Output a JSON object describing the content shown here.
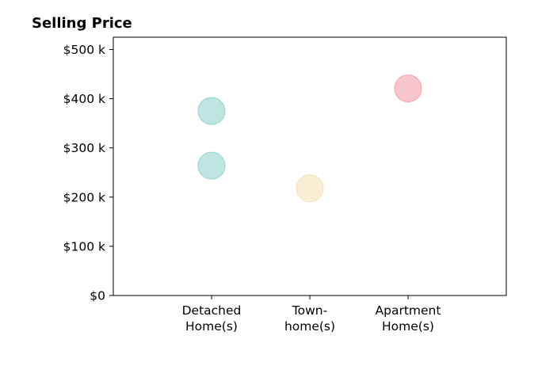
{
  "chart_data": {
    "type": "scatter",
    "title": "Selling Price",
    "xlabel": "",
    "ylabel": "",
    "categories": [
      [
        "Detached",
        "Home(s)"
      ],
      [
        "Town-",
        "home(s)"
      ],
      [
        "Apartment",
        "Home(s)"
      ]
    ],
    "ylim": [
      0,
      525000
    ],
    "yticks": [
      0,
      100000,
      200000,
      300000,
      400000,
      500000
    ],
    "ytick_labels": [
      "$0",
      "$100 k",
      "$200 k",
      "$300 k",
      "$400 k",
      "$500 k"
    ],
    "grid": false,
    "colors": [
      "#7fcbc3",
      "#f3dca8",
      "#f28d97"
    ],
    "points": [
      {
        "category": 0,
        "y": 375000
      },
      {
        "category": 0,
        "y": 264000
      },
      {
        "category": 1,
        "y": 218000
      },
      {
        "category": 2,
        "y": 421000
      }
    ]
  }
}
